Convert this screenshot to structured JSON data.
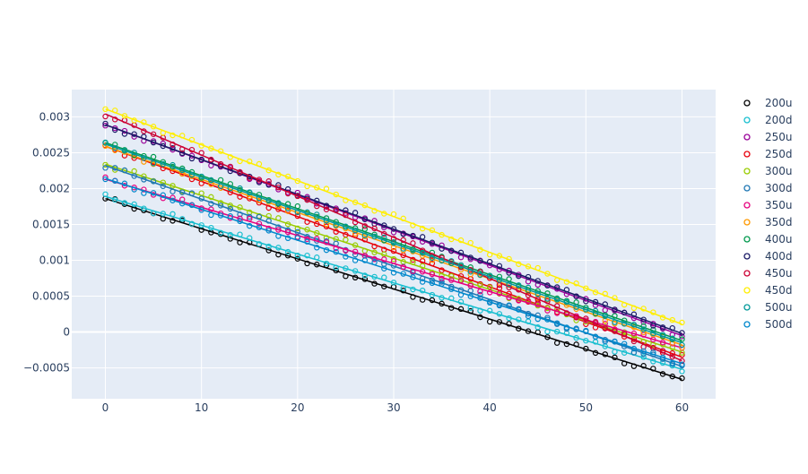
{
  "chart_data": {
    "type": "scatter",
    "title": "",
    "xlabel": "",
    "ylabel": "",
    "xlim": [
      -3.5,
      63.5
    ],
    "ylim": [
      -0.00093,
      0.00338
    ],
    "x_ticks": [
      0,
      10,
      20,
      30,
      40,
      50,
      60
    ],
    "y_ticks": [
      -0.0005,
      0,
      0.0005,
      0.001,
      0.0015,
      0.002,
      0.0025,
      0.003
    ],
    "y_tick_labels": [
      "−0.0005",
      "0",
      "0.0005",
      "0.001",
      "0.0015",
      "0.002",
      "0.0025",
      "0.003"
    ],
    "x_tick_labels": [
      "0",
      "10",
      "20",
      "30",
      "40",
      "50",
      "60"
    ],
    "grid": true,
    "legend_position": "right",
    "x_range": [
      0,
      60
    ],
    "series": [
      {
        "name": "200u",
        "color": "#000000",
        "start": 0.00186,
        "end": -0.00066
      },
      {
        "name": "200d",
        "color": "#17becf",
        "start": 0.00189,
        "end": -0.00052
      },
      {
        "name": "250u",
        "color": "#990099",
        "start": 0.00289,
        "end": -5e-05
      },
      {
        "name": "250d",
        "color": "#e8000b",
        "start": 0.00259,
        "end": -0.00035
      },
      {
        "name": "300u",
        "color": "#99cc00",
        "start": 0.00234,
        "end": -0.00028
      },
      {
        "name": "300d",
        "color": "#1f77b4",
        "start": 0.00232,
        "end": -0.00048
      },
      {
        "name": "350u",
        "color": "#e6007e",
        "start": 0.00213,
        "end": -0.00022
      },
      {
        "name": "350d",
        "color": "#ff9900",
        "start": 0.00259,
        "end": -0.00018
      },
      {
        "name": "400u",
        "color": "#00994d",
        "start": 0.00264,
        "end": -0.00012
      },
      {
        "name": "400d",
        "color": "#1a1a66",
        "start": 0.00289,
        "end": -2e-05
      },
      {
        "name": "450u",
        "color": "#cc0033",
        "start": 0.00304,
        "end": -0.0004
      },
      {
        "name": "450d",
        "color": "#ffee00",
        "start": 0.00311,
        "end": 0.00011
      },
      {
        "name": "500u",
        "color": "#009999",
        "start": 0.00262,
        "end": -0.00015
      },
      {
        "name": "500d",
        "color": "#0088cc",
        "start": 0.00214,
        "end": -0.00044
      }
    ]
  }
}
